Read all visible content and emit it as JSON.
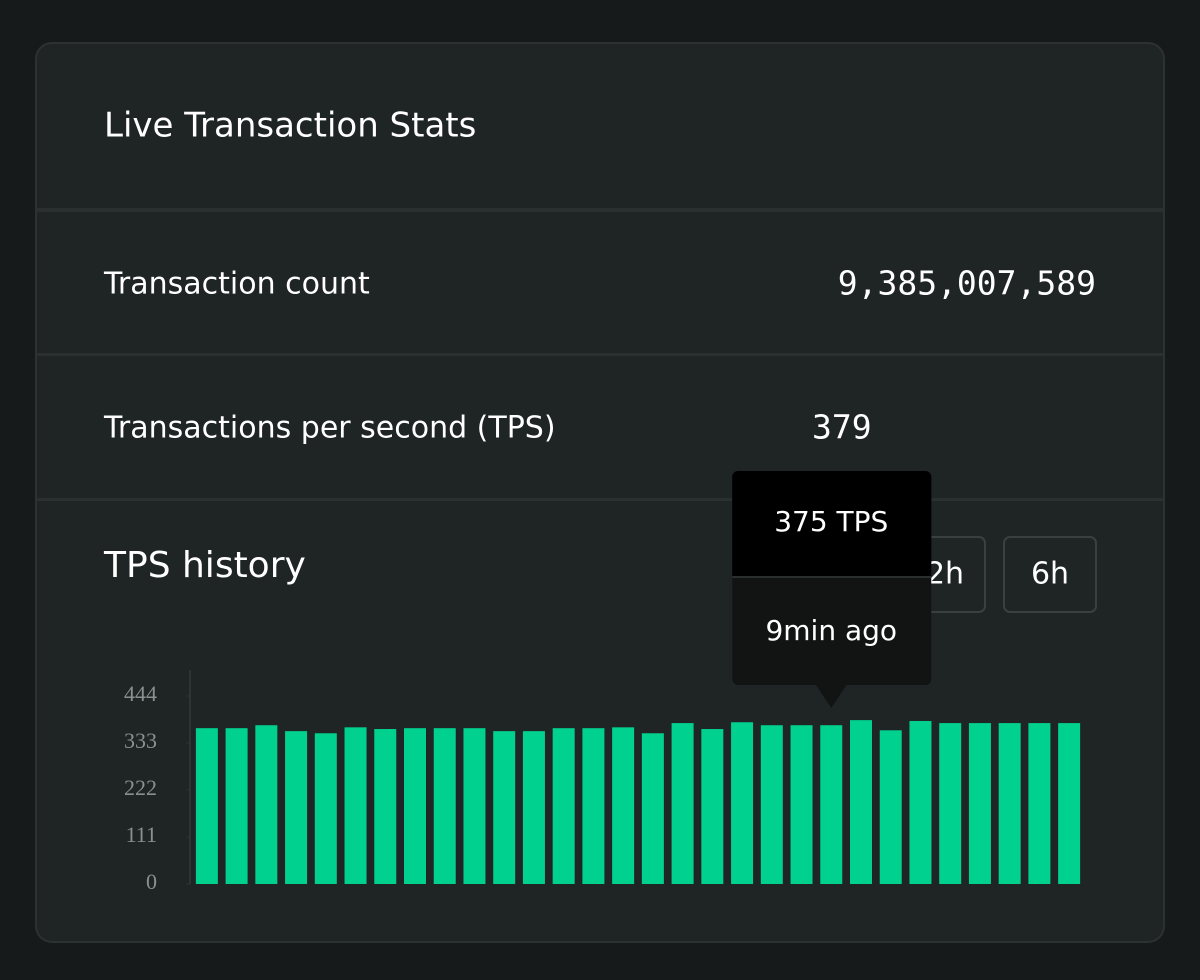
{
  "header": {
    "title": "Live Transaction Stats"
  },
  "stats": [
    {
      "label": "Transaction count",
      "value": "9,385,007,589"
    },
    {
      "label": "Transactions per second (TPS)",
      "value": "379"
    }
  ],
  "history": {
    "title": "TPS history",
    "buttons": [
      "2h",
      "6h"
    ]
  },
  "chart_data": {
    "type": "bar",
    "values": [
      368,
      368,
      375,
      361,
      356,
      370,
      366,
      368,
      368,
      368,
      361,
      361,
      368,
      368,
      370,
      356,
      380,
      366,
      382,
      375,
      375,
      375,
      387,
      363,
      385,
      380,
      380,
      380,
      380,
      380
    ],
    "color": "#00d18f",
    "ylim": [
      0,
      444
    ],
    "yticks": [
      0,
      111,
      222,
      333,
      444
    ],
    "tooltip": {
      "label": "375 TPS",
      "time": "9min ago"
    }
  }
}
